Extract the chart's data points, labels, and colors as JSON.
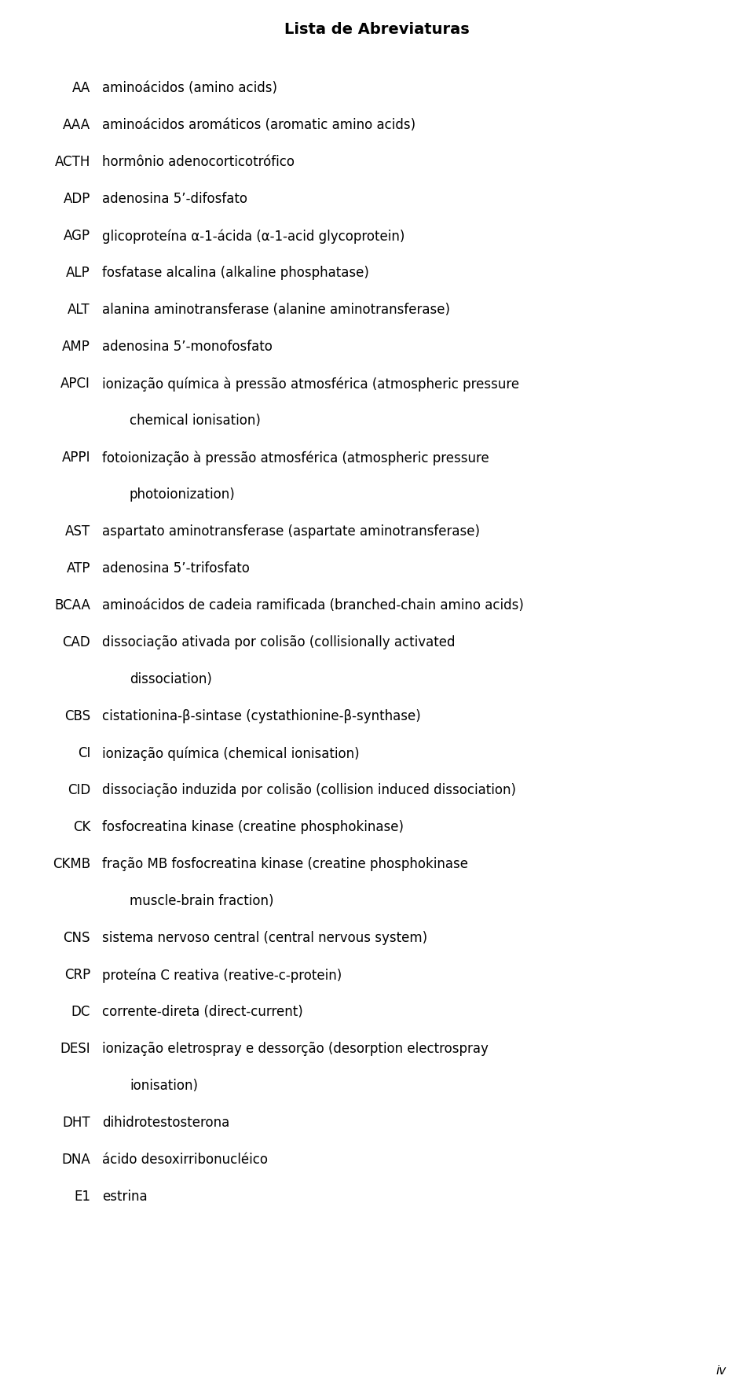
{
  "title": "Lista de Abreviaturas",
  "background_color": "#ffffff",
  "text_color": "#000000",
  "entries": [
    {
      "abbr": "AA",
      "definition": "aminoácidos (amino acids)",
      "wrapped": false
    },
    {
      "abbr": "AAA",
      "definition": "aminoácidos aromáticos (aromatic amino acids)",
      "wrapped": false
    },
    {
      "abbr": "ACTH",
      "definition": "hormônio adenocorticotrófico",
      "wrapped": false
    },
    {
      "abbr": "ADP",
      "definition": "adenosina 5’-difosfato",
      "wrapped": false
    },
    {
      "abbr": "AGP",
      "definition": "glicoproteína α-1-ácida (α-1-acid glycoprotein)",
      "wrapped": false
    },
    {
      "abbr": "ALP",
      "definition": "fosfatase alcalina (alkaline phosphatase)",
      "wrapped": false
    },
    {
      "abbr": "ALT",
      "definition": "alanina aminotransferase (alanine aminotransferase)",
      "wrapped": false
    },
    {
      "abbr": "AMP",
      "definition": "adenosina 5’-monofosfato",
      "wrapped": false
    },
    {
      "abbr": "APCI",
      "line1": "ionização química à pressão atmosférica (atmospheric pressure",
      "line2": "chemical ionisation)",
      "wrapped": true
    },
    {
      "abbr": "APPI",
      "line1": "fotoionização à pressão atmosférica (atmospheric pressure",
      "line2": "photoionization)",
      "wrapped": true
    },
    {
      "abbr": "AST",
      "definition": "aspartato aminotransferase (aspartate aminotransferase)",
      "wrapped": false
    },
    {
      "abbr": "ATP",
      "definition": "adenosina 5’-trifosfato",
      "wrapped": false
    },
    {
      "abbr": "BCAA",
      "definition": "aminoácidos de cadeia ramificada (branched-chain amino acids)",
      "wrapped": false
    },
    {
      "abbr": "CAD",
      "line1": "dissociação ativada por colisão (collisionally activated",
      "line2": "dissociation)",
      "wrapped": true
    },
    {
      "abbr": "CBS",
      "definition": "cistationina-β-sintase (cystathionine-β-synthase)",
      "wrapped": false
    },
    {
      "abbr": "CI",
      "definition": "ionização química (chemical ionisation)",
      "wrapped": false
    },
    {
      "abbr": "CID",
      "definition": "dissociação induzida por colisão (collision induced dissociation)",
      "wrapped": false
    },
    {
      "abbr": "CK",
      "definition": "fosfocreatina kinase (creatine phosphokinase)",
      "wrapped": false
    },
    {
      "abbr": "CKMB",
      "line1": "fração MB fosfocreatina kinase (creatine phosphokinase",
      "line2": "muscle-brain fraction)",
      "wrapped": true
    },
    {
      "abbr": "CNS",
      "definition": "sistema nervoso central (central nervous system)",
      "wrapped": false
    },
    {
      "abbr": "CRP",
      "definition": "proteína C reativa (reative-c-protein)",
      "wrapped": false
    },
    {
      "abbr": "DC",
      "definition": "corrente-direta (direct-current)",
      "wrapped": false
    },
    {
      "abbr": "DESI",
      "line1": "ionização eletrospray e dessorção (desorption electrospray",
      "line2": "ionisation)",
      "wrapped": true
    },
    {
      "abbr": "DHT",
      "definition": "dihidrotestosterona",
      "wrapped": false
    },
    {
      "abbr": "DNA",
      "definition": "ácido desoxirribonucléico",
      "wrapped": false
    },
    {
      "abbr": "E1",
      "definition": "estrina",
      "wrapped": false
    }
  ],
  "page_number": "iv",
  "title_fontsize": 14,
  "abbr_fontsize": 12,
  "def_fontsize": 12,
  "page_num_fontsize": 11
}
